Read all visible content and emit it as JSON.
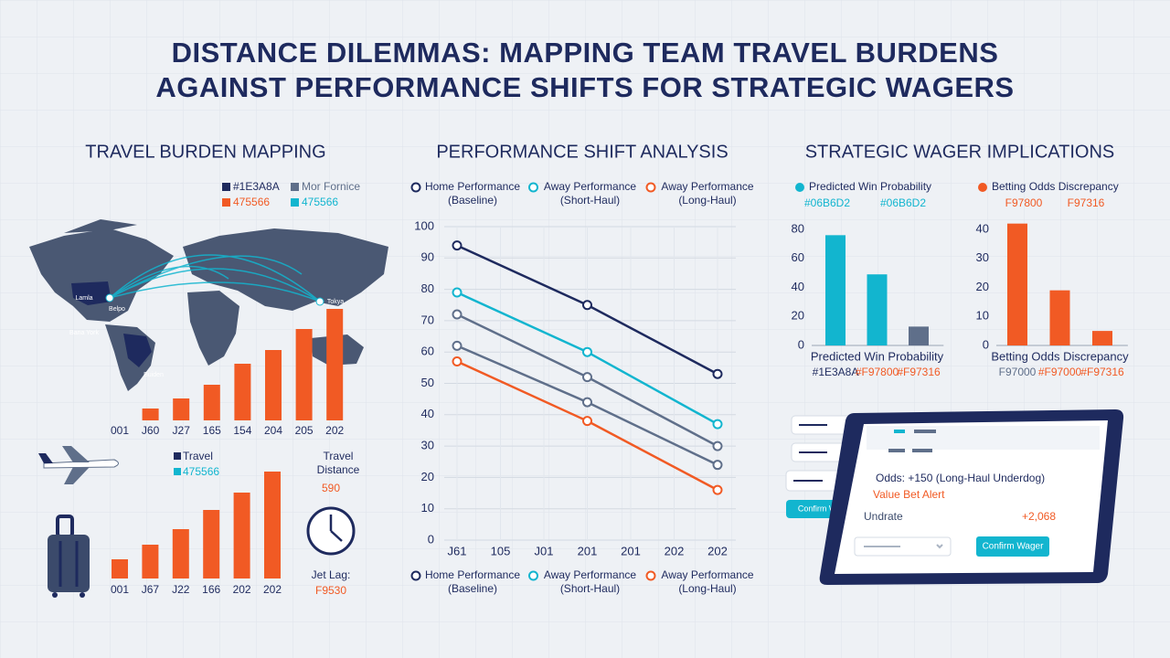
{
  "title": [
    "DISTANCE DILEMMAS: MAPPING TEAM TRAVEL BURDENS",
    "AGAINST PERFORMANCE SHIFTS FOR STRATEGIC WAGERS"
  ],
  "sections": [
    "TRAVEL BURDEN MAPPING",
    "PERFORMANCE SHIFT ANALYSIS",
    "STRATEGIC WAGER IMPLICATIONS"
  ],
  "map": {
    "legend": [
      {
        "label": "#1E3A8A",
        "color": "#1e2a5e"
      },
      {
        "label": "Mor Fornice",
        "color": "#5f6f8a"
      },
      {
        "label": "475566",
        "color": "#f15a24"
      },
      {
        "label": "475566",
        "color": "#12b5cf"
      }
    ],
    "cities": [
      "Lamla",
      "Belpo",
      "Bana York",
      "Tokya",
      "Buiden"
    ]
  },
  "travel_side": {
    "distance_label": "Travel Distance",
    "distance_value": "590",
    "jet_lag_label": "Jet Lag:",
    "jet_lag_value": "F9530"
  },
  "wager_ui": {
    "button": "Confirm Wager",
    "odds": "Odds: +150 (Long-Haul Underdog)",
    "alert": "Value Bet Alert",
    "row_label": "Undrate",
    "row_value": "+2,068"
  },
  "chart_data": [
    {
      "type": "bar",
      "categories": [
        "001",
        "J60",
        "J27",
        "165",
        "154",
        "204",
        "205",
        "202"
      ],
      "values": [
        null,
        13,
        24,
        39,
        62,
        77,
        100,
        122
      ],
      "color": "#f15a24"
    },
    {
      "type": "bar",
      "categories": [
        "001",
        "J67",
        "J22",
        "166",
        "202",
        "202"
      ],
      "values": [
        21,
        37,
        54,
        75,
        94,
        117
      ],
      "color": "#f15a24",
      "legend": [
        {
          "label": "Travel",
          "color": "#1e2a5e"
        },
        {
          "label": "475566",
          "color": "#12b5cf"
        }
      ]
    },
    {
      "type": "line",
      "xticks": [
        {
          "value": 0,
          "label": "J61"
        },
        {
          "value": 1,
          "label": "105"
        },
        {
          "value": 2,
          "label": "J01"
        },
        {
          "value": 3,
          "label": "201"
        },
        {
          "value": 4,
          "label": "201"
        },
        {
          "value": 5,
          "label": "202"
        },
        {
          "value": 6,
          "label": "202"
        }
      ],
      "x": [
        0,
        3,
        6
      ],
      "xlim": [
        0,
        6
      ],
      "ylim": [
        0,
        100
      ],
      "yticks": [
        0,
        10,
        20,
        30,
        40,
        50,
        60,
        70,
        80,
        90,
        100
      ],
      "grid": true,
      "series": [
        {
          "name": "Home Performance (Baseline)",
          "color": "#1e2a5e",
          "values": [
            94,
            75,
            53
          ]
        },
        {
          "name": "Away Performance (Short-Haul)",
          "color": "#12b5cf",
          "values": [
            79,
            60,
            37
          ]
        },
        {
          "color": "#5f6f8a",
          "values": [
            72,
            52,
            30
          ]
        },
        {
          "color": "#5f6f8a",
          "values": [
            62,
            44,
            24
          ]
        },
        {
          "name": "Away Performance (Long-Haul)",
          "color": "#f15a24",
          "values": [
            57,
            38,
            16
          ]
        }
      ]
    },
    {
      "type": "bar",
      "legend": "Predicted Win Probability",
      "legend_color": "#12b5cf",
      "legend_codes": [
        "#06B6D2",
        "#06B6D2"
      ],
      "x_label": "Predicted Win Probability",
      "categories": [
        "#1E3A8A",
        "#F97800",
        "#F97316"
      ],
      "category_colors": [
        "#1e2a5e",
        "#f15a24",
        "#f15a24"
      ],
      "values": [
        76,
        49,
        13
      ],
      "colors": [
        "#12b5cf",
        "#12b5cf",
        "#5f6f8a"
      ],
      "ylim": [
        0,
        80
      ],
      "yticks": [
        0,
        20,
        40,
        60,
        80
      ]
    },
    {
      "type": "bar",
      "legend": "Betting Odds Discrepancy",
      "legend_color": "#f15a24",
      "legend_codes": [
        "F97800",
        "F97316"
      ],
      "x_label": "Betting Odds Discrepancy",
      "categories": [
        "F97000",
        "#F97000",
        "#F97316"
      ],
      "category_colors": [
        "#5f6f8a",
        "#f15a24",
        "#f15a24"
      ],
      "values": [
        42,
        19,
        5
      ],
      "colors": [
        "#f15a24",
        "#f15a24",
        "#f15a24"
      ],
      "ylim": [
        0,
        40
      ],
      "yticks": [
        0,
        10,
        20,
        30,
        40
      ]
    }
  ]
}
